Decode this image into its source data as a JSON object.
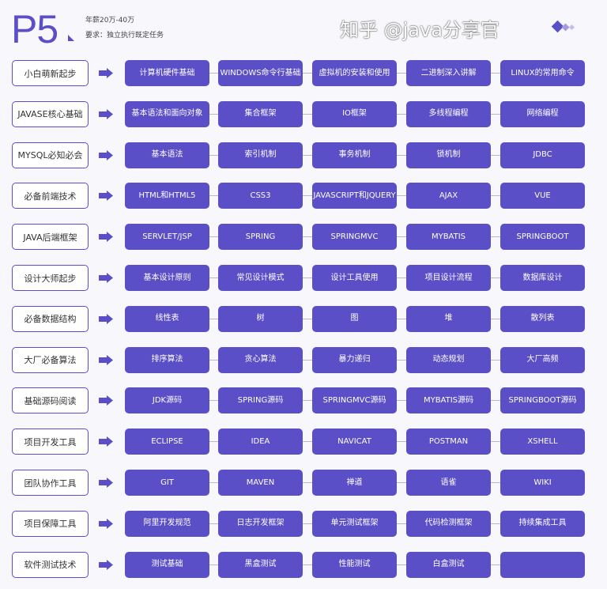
{
  "header": {
    "logo": "P5",
    "salary": "年薪20万-40万",
    "requirement": "要求：独立执行既定任务",
    "accent": "#5b4fc7"
  },
  "rows": [
    {
      "category": "小白萌新起步",
      "items": [
        "计算机硬件基础",
        "WINDOWS命令行基础",
        "虚拟机的安装和使用",
        "二进制深入讲解",
        "LINUX的常用命令"
      ]
    },
    {
      "category": "JAVASE核心基础",
      "items": [
        "基本语法和面向对象",
        "集合框架",
        "IO框架",
        "多线程编程",
        "网络编程"
      ]
    },
    {
      "category": "MYSQL必知必会",
      "items": [
        "基本语法",
        "索引机制",
        "事务机制",
        "锁机制",
        "JDBC"
      ]
    },
    {
      "category": "必备前端技术",
      "items": [
        "HTML和HTML5",
        "CSS3",
        "JAVASCRIPT和JQUERY",
        "AJAX",
        "VUE"
      ]
    },
    {
      "category": "JAVA后端框架",
      "items": [
        "SERVLET/JSP",
        "SPRING",
        "SPRINGMVC",
        "MYBATIS",
        "SPRINGBOOT"
      ]
    },
    {
      "category": "设计大师起步",
      "items": [
        "基本设计原则",
        "常见设计模式",
        "设计工具使用",
        "项目设计流程",
        "数据库设计"
      ]
    },
    {
      "category": "必备数据结构",
      "items": [
        "线性表",
        "树",
        "图",
        "堆",
        "散列表"
      ]
    },
    {
      "category": "大厂必备算法",
      "items": [
        "排序算法",
        "贪心算法",
        "暴力递归",
        "动态规划",
        "大厂高频"
      ]
    },
    {
      "category": "基础源码阅读",
      "items": [
        "JDK源码",
        "SPRING源码",
        "SPRINGMVC源码",
        "MYBATIS源码",
        "SPRINGBOOT源码"
      ]
    },
    {
      "category": "项目开发工具",
      "items": [
        "ECLIPSE",
        "IDEA",
        "NAVICAT",
        "POSTMAN",
        "XSHELL"
      ]
    },
    {
      "category": "团队协作工具",
      "items": [
        "GIT",
        "MAVEN",
        "禅道",
        "语雀",
        "WIKI"
      ]
    },
    {
      "category": "项目保障工具",
      "items": [
        "阿里开发规范",
        "日志开发框架",
        "单元测试框架",
        "代码检测框架",
        "持续集成工具"
      ]
    },
    {
      "category": "软件测试技术",
      "items": [
        "测试基础",
        "黑盒测试",
        "性能测试",
        "白盒测试",
        ""
      ]
    }
  ],
  "watermark": "知乎 @java分享官"
}
